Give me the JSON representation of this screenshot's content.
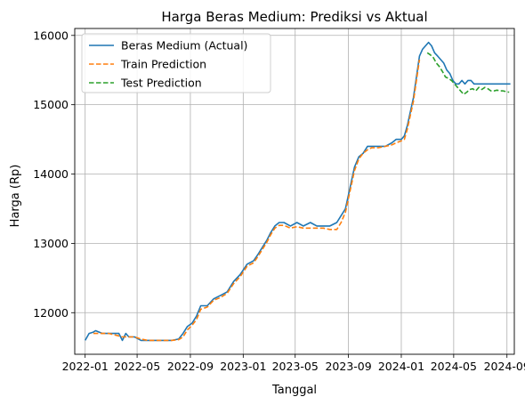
{
  "chart_data": {
    "type": "line",
    "title": "Harga Beras Medium: Prediksi vs Aktual",
    "xlabel": "Tanggal",
    "ylabel": "Harga (Rp)",
    "ylim": [
      11400,
      16100
    ],
    "xlim": [
      "2021-12-08",
      "2024-09-18"
    ],
    "grid": true,
    "legend_position": "top-left",
    "x_ticks": [
      "2022-01",
      "2022-05",
      "2022-09",
      "2023-01",
      "2023-05",
      "2023-09",
      "2024-01",
      "2024-05",
      "2024-09"
    ],
    "y_ticks": [
      12000,
      13000,
      14000,
      15000,
      16000
    ],
    "series": [
      {
        "name": "Beras Medium (Actual)",
        "color": "#1f77b4",
        "style": "solid",
        "x": [
          "2022-01-01",
          "2022-01-10",
          "2022-01-20",
          "2022-01-25",
          "2022-02-10",
          "2022-02-25",
          "2022-03-10",
          "2022-03-20",
          "2022-03-28",
          "2022-04-05",
          "2022-04-12",
          "2022-04-25",
          "2022-05-10",
          "2022-05-25",
          "2022-06-10",
          "2022-07-01",
          "2022-07-20",
          "2022-08-05",
          "2022-08-15",
          "2022-08-25",
          "2022-09-05",
          "2022-09-15",
          "2022-09-25",
          "2022-10-10",
          "2022-10-25",
          "2022-11-10",
          "2022-11-25",
          "2022-12-10",
          "2022-12-25",
          "2023-01-10",
          "2023-01-25",
          "2023-02-05",
          "2023-02-15",
          "2023-02-25",
          "2023-03-05",
          "2023-03-15",
          "2023-03-25",
          "2023-04-05",
          "2023-04-20",
          "2023-05-05",
          "2023-05-20",
          "2023-06-05",
          "2023-06-20",
          "2023-07-05",
          "2023-07-20",
          "2023-08-05",
          "2023-08-15",
          "2023-08-25",
          "2023-09-01",
          "2023-09-08",
          "2023-09-15",
          "2023-09-25",
          "2023-10-05",
          "2023-10-15",
          "2023-10-25",
          "2023-11-10",
          "2023-11-25",
          "2023-12-10",
          "2023-12-20",
          "2024-01-01",
          "2024-01-08",
          "2024-01-15",
          "2024-01-22",
          "2024-01-29",
          "2024-02-05",
          "2024-02-12",
          "2024-02-19",
          "2024-02-26",
          "2024-03-04",
          "2024-03-11",
          "2024-03-18",
          "2024-03-25",
          "2024-04-01",
          "2024-04-08",
          "2024-04-15",
          "2024-04-22",
          "2024-04-29",
          "2024-05-06",
          "2024-05-13",
          "2024-05-20",
          "2024-05-27",
          "2024-06-03",
          "2024-06-10",
          "2024-06-17",
          "2024-06-24",
          "2024-07-01",
          "2024-07-08",
          "2024-07-15",
          "2024-07-22",
          "2024-07-29",
          "2024-08-05",
          "2024-08-12",
          "2024-08-19",
          "2024-08-26",
          "2024-09-02",
          "2024-09-09"
        ],
        "values": [
          11600,
          11700,
          11720,
          11740,
          11700,
          11700,
          11700,
          11700,
          11600,
          11700,
          11650,
          11650,
          11600,
          11600,
          11600,
          11600,
          11600,
          11620,
          11700,
          11800,
          11850,
          11950,
          12100,
          12100,
          12200,
          12250,
          12300,
          12450,
          12550,
          12700,
          12750,
          12850,
          12950,
          13050,
          13150,
          13250,
          13300,
          13300,
          13250,
          13300,
          13250,
          13300,
          13250,
          13250,
          13250,
          13300,
          13400,
          13500,
          13700,
          13900,
          14100,
          14250,
          14300,
          14400,
          14400,
          14400,
          14400,
          14450,
          14500,
          14500,
          14550,
          14700,
          14900,
          15100,
          15400,
          15700,
          15800,
          15850,
          15900,
          15850,
          15750,
          15700,
          15650,
          15600,
          15500,
          15450,
          15350,
          15300,
          15300,
          15350,
          15300,
          15350,
          15350,
          15300,
          15300,
          15300,
          15300,
          15300,
          15300,
          15300,
          15300,
          15300,
          15300,
          15300,
          15300,
          15300
        ]
      },
      {
        "name": "Train Prediction",
        "color": "#ff7f0e",
        "style": "dashed",
        "x": [
          "2022-01-20",
          "2022-02-10",
          "2022-02-25",
          "2022-03-10",
          "2022-03-28",
          "2022-04-12",
          "2022-04-25",
          "2022-05-10",
          "2022-05-25",
          "2022-06-10",
          "2022-07-01",
          "2022-07-20",
          "2022-08-05",
          "2022-08-15",
          "2022-08-25",
          "2022-09-05",
          "2022-09-15",
          "2022-09-25",
          "2022-10-10",
          "2022-10-25",
          "2022-11-10",
          "2022-11-25",
          "2022-12-10",
          "2022-12-25",
          "2023-01-10",
          "2023-01-25",
          "2023-02-05",
          "2023-02-15",
          "2023-02-25",
          "2023-03-05",
          "2023-03-15",
          "2023-03-25",
          "2023-04-05",
          "2023-04-20",
          "2023-05-05",
          "2023-05-20",
          "2023-06-05",
          "2023-06-20",
          "2023-07-05",
          "2023-07-20",
          "2023-08-05",
          "2023-08-15",
          "2023-08-25",
          "2023-09-01",
          "2023-09-08",
          "2023-09-15",
          "2023-09-25",
          "2023-10-05",
          "2023-10-15",
          "2023-10-25",
          "2023-11-10",
          "2023-11-25",
          "2023-12-10",
          "2023-12-20",
          "2024-01-01",
          "2024-01-08",
          "2024-01-15",
          "2024-01-22",
          "2024-01-29",
          "2024-02-05",
          "2024-02-12"
        ],
        "values": [
          11700,
          11700,
          11700,
          11680,
          11650,
          11650,
          11650,
          11620,
          11600,
          11600,
          11600,
          11600,
          11610,
          11650,
          11750,
          11820,
          11900,
          12050,
          12080,
          12180,
          12220,
          12280,
          12420,
          12520,
          12670,
          12720,
          12820,
          12920,
          13020,
          13120,
          13220,
          13260,
          13260,
          13220,
          13240,
          13220,
          13220,
          13220,
          13220,
          13200,
          13200,
          13300,
          13450,
          13650,
          13850,
          14050,
          14220,
          14300,
          14350,
          14380,
          14380,
          14400,
          14420,
          14450,
          14480,
          14500,
          14650,
          14850,
          15050,
          15350,
          15650
        ]
      },
      {
        "name": "Test Prediction",
        "color": "#2ca02c",
        "style": "dashed",
        "x": [
          "2024-03-01",
          "2024-03-08",
          "2024-03-15",
          "2024-03-22",
          "2024-03-29",
          "2024-04-05",
          "2024-04-12",
          "2024-04-19",
          "2024-04-26",
          "2024-05-03",
          "2024-05-10",
          "2024-05-17",
          "2024-05-24",
          "2024-05-31",
          "2024-06-07",
          "2024-06-14",
          "2024-06-21",
          "2024-06-28",
          "2024-07-05",
          "2024-07-12",
          "2024-07-19",
          "2024-07-26",
          "2024-08-02",
          "2024-08-09",
          "2024-08-16",
          "2024-08-23",
          "2024-08-30",
          "2024-09-06"
        ],
        "values": [
          15750,
          15720,
          15680,
          15600,
          15550,
          15480,
          15400,
          15380,
          15350,
          15300,
          15250,
          15200,
          15150,
          15180,
          15220,
          15230,
          15200,
          15250,
          15220,
          15250,
          15230,
          15200,
          15200,
          15210,
          15200,
          15200,
          15190,
          15180
        ]
      }
    ]
  }
}
